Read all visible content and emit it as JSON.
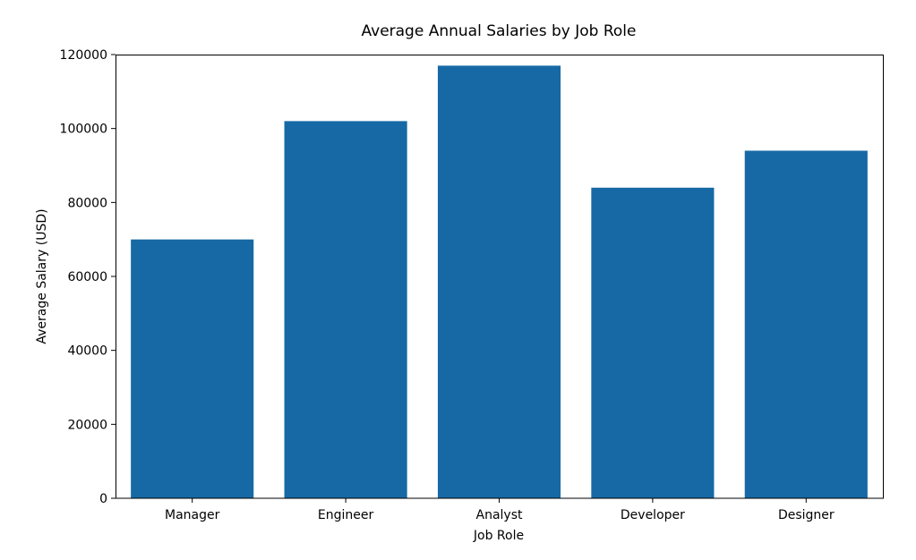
{
  "chart_data": {
    "type": "bar",
    "title": "Average Annual Salaries by Job Role",
    "xlabel": "Job Role",
    "ylabel": "Average Salary (USD)",
    "categories": [
      "Manager",
      "Engineer",
      "Analyst",
      "Developer",
      "Designer"
    ],
    "values": [
      70000,
      102000,
      117000,
      84000,
      94000
    ],
    "ylim": [
      0,
      120000
    ],
    "yticks": [
      0,
      20000,
      40000,
      60000,
      80000,
      100000,
      120000
    ],
    "ytick_labels": [
      "0",
      "20000",
      "40000",
      "60000",
      "80000",
      "100000",
      "120000"
    ],
    "grid": false,
    "bar_color": "#1669a5"
  }
}
